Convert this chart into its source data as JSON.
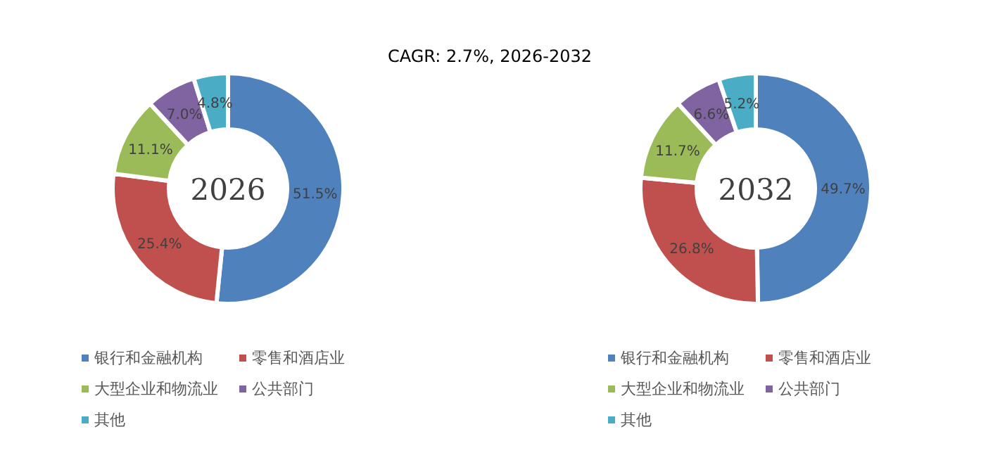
{
  "chart_data": [
    {
      "type": "donut",
      "title": "CAGR:   2.7%, 2026-2032",
      "annotations": [
        "2026"
      ],
      "legend": "bottom",
      "categories": [
        "银行和金融机构",
        "零售和酒店业",
        "大型企业和物流业",
        "公共部门",
        "其他"
      ],
      "values": [
        51.5,
        25.4,
        11.1,
        7.0,
        4.8
      ],
      "value_labels": [
        "51.5%",
        "25.4%",
        "11.1%",
        "7.0%",
        "4.8%"
      ],
      "colors": [
        "#4f81bd",
        "#c0504d",
        "#9bbb59",
        "#8064a2",
        "#4bacc6"
      ]
    },
    {
      "type": "donut",
      "annotations": [
        "2032"
      ],
      "legend": "bottom",
      "categories": [
        "银行和金融机构",
        "零售和酒店业",
        "大型企业和物流业",
        "公共部门",
        "其他"
      ],
      "values": [
        49.7,
        26.8,
        11.7,
        6.6,
        5.2
      ],
      "value_labels": [
        "49.7%",
        "26.8%",
        "11.7%",
        "6.6%",
        "5.2%"
      ],
      "colors": [
        "#4f81bd",
        "#c0504d",
        "#9bbb59",
        "#8064a2",
        "#4bacc6"
      ]
    }
  ]
}
